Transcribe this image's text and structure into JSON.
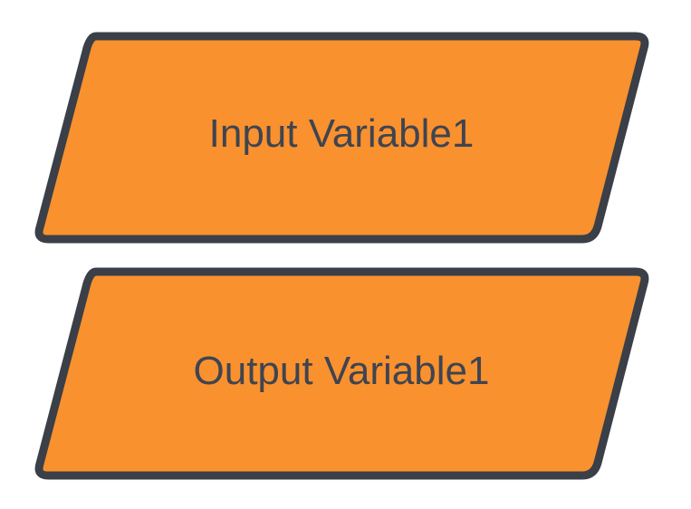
{
  "diagram": {
    "style": {
      "fill": "#f9912f",
      "stroke": "#3a3f48",
      "text_color": "#3f4450"
    },
    "shapes": [
      {
        "id": "input",
        "kind": "parallelogram",
        "label": "Input Variable1"
      },
      {
        "id": "output",
        "kind": "parallelogram",
        "label": "Output Variable1"
      }
    ]
  }
}
